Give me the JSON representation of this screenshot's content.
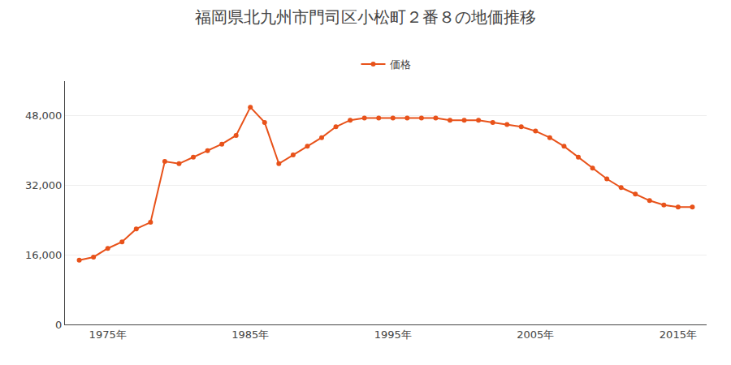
{
  "chart_data": {
    "type": "line",
    "title": "福岡県北九州市門司区小松町２番８の地価推移",
    "x": [
      1973,
      1974,
      1975,
      1976,
      1977,
      1978,
      1979,
      1980,
      1981,
      1982,
      1983,
      1984,
      1985,
      1986,
      1987,
      1988,
      1989,
      1990,
      1991,
      1992,
      1993,
      1994,
      1995,
      1996,
      1997,
      1998,
      1999,
      2000,
      2001,
      2002,
      2003,
      2004,
      2005,
      2006,
      2007,
      2008,
      2009,
      2010,
      2011,
      2012,
      2013,
      2014,
      2015,
      2016
    ],
    "series": [
      {
        "name": "価格",
        "color": "#E8521A",
        "marker": "circle",
        "line_style": "solid",
        "values": [
          14800,
          15500,
          17500,
          19000,
          22000,
          23500,
          37500,
          37000,
          38500,
          40000,
          41500,
          43500,
          50000,
          46500,
          37000,
          39000,
          41000,
          43000,
          45500,
          47000,
          47500,
          47500,
          47500,
          47500,
          47500,
          47500,
          47000,
          47000,
          47000,
          46500,
          46000,
          45500,
          44500,
          43000,
          41000,
          38500,
          36000,
          33500,
          31500,
          30000,
          28500,
          27500,
          27000,
          27000
        ]
      }
    ],
    "xlim": [
      1972,
      2017
    ],
    "xticks": [
      {
        "value": 1975,
        "label": "1975年"
      },
      {
        "value": 1985,
        "label": "1985年"
      },
      {
        "value": 1995,
        "label": "1995年"
      },
      {
        "value": 2005,
        "label": "2005年"
      },
      {
        "value": 2015,
        "label": "2015年"
      }
    ],
    "ylim": [
      0,
      56000
    ],
    "yticks": [
      0,
      {
        "value": 16000,
        "label": "16,000"
      },
      {
        "value": 32000,
        "label": "32,000"
      },
      {
        "value": 48000,
        "label": "48,000"
      }
    ],
    "grid": "y",
    "legend": "top"
  }
}
